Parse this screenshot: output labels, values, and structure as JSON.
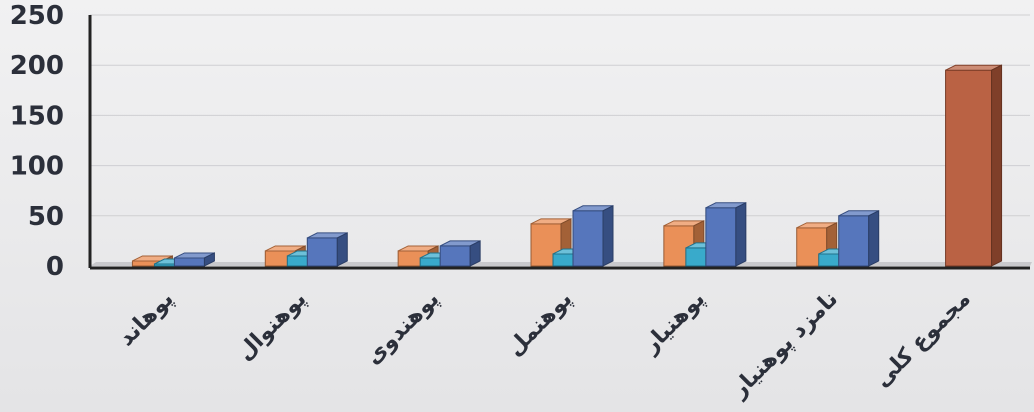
{
  "chart_data": {
    "type": "bar",
    "categories": [
      "پوهاند",
      "پوهنوال",
      "پوهندوی",
      "پوهنمل",
      "پوهنیار",
      "نامزد پوهنیار",
      "مجموع کلی"
    ],
    "series": [
      {
        "values": [
          5,
          15,
          15,
          42,
          40,
          38,
          195
        ]
      },
      {
        "values": [
          2,
          10,
          8,
          12,
          18,
          12,
          0
        ]
      },
      {
        "values": [
          8,
          28,
          20,
          55,
          58,
          50,
          0
        ]
      }
    ],
    "yticks": [
      0,
      50,
      100,
      150,
      200,
      250
    ],
    "ylim": [
      0,
      250
    ],
    "grid": true,
    "colors": [
      "#e98a4f",
      "#2fa5c8",
      "#4d6fb8"
    ],
    "total_color": "#b65a3a"
  }
}
